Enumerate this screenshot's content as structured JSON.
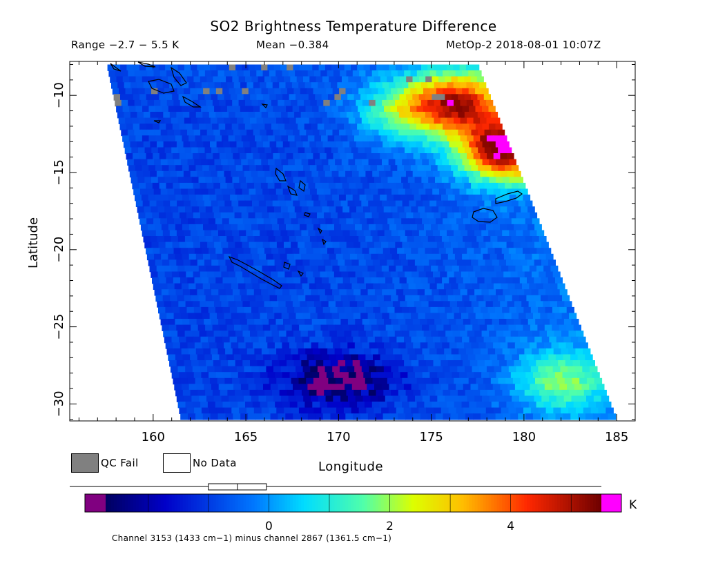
{
  "header": {
    "title": "SO2 Brightness Temperature Difference",
    "range_text": "Range −2.7 − 5.5 K",
    "mean_text": "Mean −0.384",
    "source_text": "MetOp-2 2018-08-01 10:07Z"
  },
  "legend": {
    "qc_fail_label": "QC Fail",
    "no_data_label": "No Data",
    "qc_fail_color": "#808080",
    "no_data_color": "#ffffff"
  },
  "colorbar": {
    "unit": "K",
    "ticks": [
      0,
      2,
      4
    ],
    "range": [
      -2.7,
      5.5
    ],
    "underflow_color": "#800080",
    "overflow_color": "#ff00ff",
    "boxplot_markers": [
      -1.0,
      -0.52,
      -0.04
    ],
    "footnote": "Channel 3153 (1433 cm−1) minus channel 2867 (1361.5 cm−1)"
  },
  "chart_data": {
    "type": "heatmap",
    "title": "SO2 Brightness Temperature Difference",
    "xlabel": "Longitude",
    "ylabel": "Latitude",
    "xlim": [
      155.5,
      186.0
    ],
    "ylim": [
      -31.1,
      -7.8
    ],
    "xticks": [
      160,
      165,
      170,
      175,
      180,
      185
    ],
    "yticks": [
      -10,
      -15,
      -20,
      -25,
      -30
    ],
    "swath_corners": {
      "top_left": [
        157.5,
        -8.0
      ],
      "top_right": [
        177.5,
        -8.0
      ],
      "bottom_left": [
        161.5,
        -31.0
      ],
      "bottom_right": [
        185.0,
        -31.0
      ]
    },
    "hotspots": [
      {
        "lon": 176.5,
        "lat": -10.5,
        "value": 4.0
      },
      {
        "lon": 179.0,
        "lat": -13.5,
        "value": 5.2
      },
      {
        "lon": 173.5,
        "lat": -11.0,
        "value": 1.5
      },
      {
        "lon": 182.0,
        "lat": -28.5,
        "value": 1.5
      }
    ],
    "negative_regions": [
      {
        "lon": 170.0,
        "lat": -28.5,
        "value": -2.8
      }
    ]
  }
}
